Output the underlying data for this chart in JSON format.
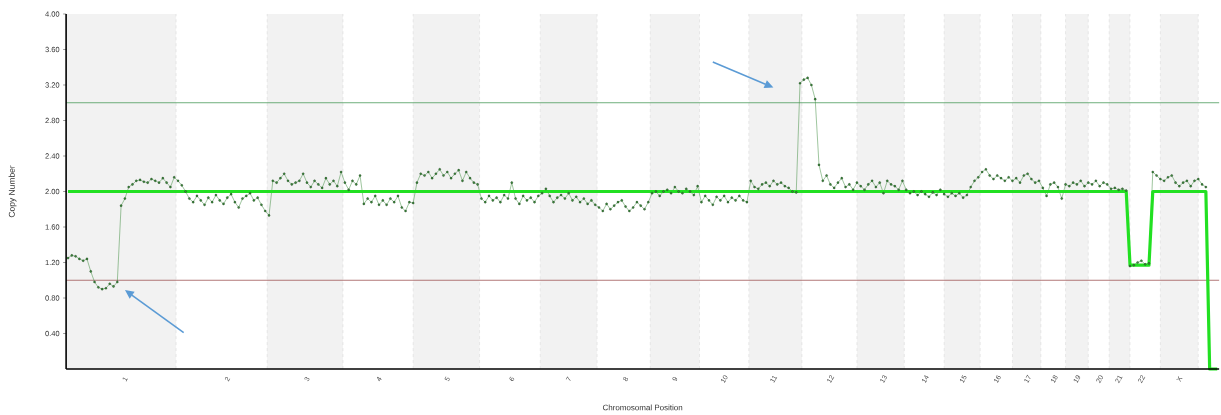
{
  "chart_data": {
    "type": "line",
    "xlabel": "Chromosomal Position",
    "ylabel": "Copy Number",
    "categories": [
      null,
      null,
      null,
      null,
      null,
      null,
      null,
      null,
      null,
      null,
      null,
      null,
      null,
      null,
      null,
      "1",
      null,
      null,
      null,
      null,
      null,
      null,
      null,
      null,
      null,
      null,
      null,
      null,
      null,
      null,
      null,
      null,
      null,
      null,
      null,
      null,
      null,
      null,
      null,
      null,
      null,
      null,
      "2",
      null,
      null,
      null,
      null,
      null,
      null,
      null,
      null,
      null,
      null,
      null,
      null,
      null,
      null,
      null,
      null,
      null,
      null,
      null,
      null,
      "3",
      null,
      null,
      null,
      null,
      null,
      null,
      null,
      null,
      null,
      null,
      null,
      null,
      null,
      null,
      null,
      null,
      null,
      null,
      "4",
      null,
      null,
      null,
      null,
      null,
      null,
      null,
      null,
      null,
      null,
      null,
      null,
      null,
      null,
      null,
      null,
      null,
      "5",
      null,
      null,
      null,
      null,
      null,
      null,
      null,
      null,
      null,
      null,
      null,
      null,
      null,
      null,
      null,
      null,
      "6",
      null,
      null,
      null,
      null,
      null,
      null,
      null,
      null,
      null,
      null,
      null,
      null,
      null,
      null,
      "7",
      null,
      null,
      null,
      null,
      null,
      null,
      null,
      null,
      null,
      null,
      null,
      null,
      null,
      null,
      "8",
      null,
      null,
      null,
      null,
      null,
      null,
      null,
      null,
      null,
      null,
      null,
      null,
      "9",
      null,
      null,
      null,
      null,
      null,
      null,
      null,
      null,
      null,
      null,
      null,
      null,
      "10",
      null,
      null,
      null,
      null,
      null,
      null,
      null,
      null,
      null,
      null,
      null,
      null,
      "11",
      null,
      null,
      null,
      null,
      null,
      null,
      null,
      null,
      null,
      null,
      null,
      null,
      null,
      null,
      "12",
      null,
      null,
      null,
      null,
      null,
      null,
      null,
      null,
      null,
      null,
      null,
      null,
      null,
      "13",
      null,
      null,
      null,
      null,
      null,
      null,
      null,
      null,
      null,
      null,
      "14",
      null,
      null,
      null,
      null,
      null,
      null,
      null,
      null,
      null,
      "15",
      null,
      null,
      null,
      null,
      null,
      null,
      null,
      null,
      "16",
      null,
      null,
      null,
      null,
      null,
      null,
      null,
      "17",
      null,
      null,
      null,
      null,
      null,
      null,
      "18",
      null,
      null,
      null,
      null,
      null,
      "19",
      null,
      null,
      null,
      null,
      null,
      "20",
      null,
      null,
      null,
      null,
      "21",
      null,
      null,
      null,
      null,
      null,
      "22",
      null,
      null,
      null,
      null,
      null,
      null,
      null,
      null,
      null,
      "X",
      null,
      null,
      null,
      null,
      null,
      null,
      null,
      null,
      null,
      null
    ],
    "ylim": [
      0,
      4
    ],
    "yticks": [
      {
        "value": 0.4,
        "label": "0.40"
      },
      {
        "value": 0.8,
        "label": "0.80"
      },
      {
        "value": 1.2,
        "label": "1.20"
      },
      {
        "value": 1.6,
        "label": "1.60"
      },
      {
        "value": 2.0,
        "label": "2.00"
      },
      {
        "value": 2.4,
        "label": "2.40"
      },
      {
        "value": 2.8,
        "label": "2.80"
      },
      {
        "value": 3.2,
        "label": "3.20"
      },
      {
        "value": 3.6,
        "label": "3.60"
      },
      {
        "value": 4.0,
        "label": "4.00"
      }
    ],
    "ref_lines": [
      {
        "axis": "y",
        "value": 3,
        "color": "#4a9a5a"
      },
      {
        "axis": "y",
        "value": 1,
        "color": "#a05555"
      }
    ],
    "series": [
      {
        "color": "#3c8c3c",
        "marker": "circle",
        "values": [
          1.25,
          1.28,
          1.27,
          1.24,
          1.22,
          1.24,
          1.1,
          0.98,
          0.92,
          0.9,
          0.91,
          0.96,
          0.93,
          0.98,
          1.84,
          1.92,
          2.05,
          2.08,
          2.12,
          2.13,
          2.11,
          2.1,
          2.14,
          2.12,
          2.1,
          2.15,
          2.1,
          2.05,
          2.16,
          2.12,
          2.07,
          2.0,
          1.92,
          1.88,
          1.95,
          1.9,
          1.85,
          1.93,
          1.88,
          1.96,
          1.9,
          1.86,
          1.93,
          1.97,
          1.88,
          1.82,
          1.92,
          1.95,
          1.98,
          1.9,
          1.93,
          1.85,
          1.78,
          1.73,
          2.12,
          2.1,
          2.15,
          2.2,
          2.12,
          2.08,
          2.1,
          2.12,
          2.2,
          2.1,
          2.05,
          2.12,
          2.08,
          2.04,
          2.15,
          2.08,
          2.12,
          2.06,
          2.22,
          2.1,
          2.02,
          2.12,
          2.08,
          2.18,
          1.86,
          1.92,
          1.88,
          1.95,
          1.85,
          1.9,
          1.85,
          1.92,
          1.88,
          1.95,
          1.82,
          1.78,
          1.88,
          1.87,
          2.1,
          2.2,
          2.18,
          2.22,
          2.15,
          2.2,
          2.25,
          2.18,
          2.22,
          2.15,
          2.2,
          2.24,
          2.12,
          2.22,
          2.15,
          2.1,
          2.08,
          1.92,
          1.88,
          1.95,
          1.9,
          1.93,
          1.88,
          1.96,
          1.92,
          2.1,
          1.92,
          1.86,
          1.95,
          1.9,
          1.93,
          1.88,
          1.95,
          1.98,
          2.03,
          1.95,
          1.88,
          1.93,
          1.96,
          1.92,
          1.98,
          1.9,
          1.94,
          1.88,
          1.92,
          1.86,
          1.9,
          1.85,
          1.82,
          1.78,
          1.86,
          1.8,
          1.84,
          1.88,
          1.9,
          1.83,
          1.78,
          1.82,
          1.88,
          1.84,
          1.8,
          1.88,
          1.98,
          2.0,
          1.95,
          2.0,
          2.02,
          1.98,
          2.05,
          2.0,
          1.98,
          2.03,
          2.0,
          1.96,
          2.06,
          1.88,
          1.95,
          1.9,
          1.85,
          1.94,
          1.9,
          1.95,
          1.88,
          1.93,
          1.9,
          1.95,
          1.9,
          1.88,
          2.12,
          2.05,
          2.03,
          2.08,
          2.1,
          2.06,
          2.12,
          2.08,
          2.1,
          2.06,
          2.04,
          2.0,
          1.99,
          3.22,
          3.26,
          3.28,
          3.2,
          3.04,
          2.3,
          2.12,
          2.18,
          2.08,
          2.04,
          2.1,
          2.15,
          2.05,
          2.08,
          2.02,
          2.1,
          2.06,
          2.02,
          2.08,
          2.12,
          2.05,
          2.1,
          1.98,
          2.12,
          2.08,
          2.06,
          2.02,
          2.12,
          2.02,
          1.98,
          2.0,
          1.96,
          2.0,
          1.97,
          1.94,
          1.99,
          1.96,
          2.02,
          1.97,
          1.94,
          1.98,
          1.95,
          1.98,
          1.93,
          1.96,
          2.05,
          2.12,
          2.16,
          2.22,
          2.25,
          2.18,
          2.14,
          2.18,
          2.15,
          2.12,
          2.16,
          2.12,
          2.15,
          2.1,
          2.18,
          2.2,
          2.14,
          2.1,
          2.12,
          2.04,
          1.95,
          2.08,
          2.1,
          2.05,
          1.92,
          2.08,
          2.06,
          2.1,
          2.08,
          2.12,
          2.06,
          2.1,
          2.08,
          2.12,
          2.06,
          2.1,
          2.08,
          2.03,
          2.04,
          2.02,
          2.03,
          2.01,
          1.16,
          1.17,
          1.2,
          1.22,
          1.18,
          1.19,
          2.22,
          2.18,
          2.14,
          2.12,
          2.16,
          2.18,
          2.1,
          2.06,
          2.1,
          2.12,
          2.06,
          2.12,
          2.14,
          2.08,
          2.05,
          null,
          null,
          null
        ]
      },
      {
        "color": "#22e022",
        "marker": "none",
        "values": [
          2,
          2,
          2,
          2,
          2,
          2,
          2,
          2,
          2,
          2,
          2,
          2,
          2,
          2,
          2,
          2,
          2,
          2,
          2,
          2,
          2,
          2,
          2,
          2,
          2,
          2,
          2,
          2,
          2,
          2,
          2,
          2,
          2,
          2,
          2,
          2,
          2,
          2,
          2,
          2,
          2,
          2,
          2,
          2,
          2,
          2,
          2,
          2,
          2,
          2,
          2,
          2,
          2,
          2,
          2,
          2,
          2,
          2,
          2,
          2,
          2,
          2,
          2,
          2,
          2,
          2,
          2,
          2,
          2,
          2,
          2,
          2,
          2,
          2,
          2,
          2,
          2,
          2,
          2,
          2,
          2,
          2,
          2,
          2,
          2,
          2,
          2,
          2,
          2,
          2,
          2,
          2,
          2,
          2,
          2,
          2,
          2,
          2,
          2,
          2,
          2,
          2,
          2,
          2,
          2,
          2,
          2,
          2,
          2,
          2,
          2,
          2,
          2,
          2,
          2,
          2,
          2,
          2,
          2,
          2,
          2,
          2,
          2,
          2,
          2,
          2,
          2,
          2,
          2,
          2,
          2,
          2,
          2,
          2,
          2,
          2,
          2,
          2,
          2,
          2,
          2,
          2,
          2,
          2,
          2,
          2,
          2,
          2,
          2,
          2,
          2,
          2,
          2,
          2,
          2,
          2,
          2,
          2,
          2,
          2,
          2,
          2,
          2,
          2,
          2,
          2,
          2,
          2,
          2,
          2,
          2,
          2,
          2,
          2,
          2,
          2,
          2,
          2,
          2,
          2,
          2,
          2,
          2,
          2,
          2,
          2,
          2,
          2,
          2,
          2,
          2,
          2,
          2,
          2,
          2,
          2,
          2,
          2,
          2,
          2,
          2,
          2,
          2,
          2,
          2,
          2,
          2,
          2,
          2,
          2,
          2,
          2,
          2,
          2,
          2,
          2,
          2,
          2,
          2,
          2,
          2,
          2,
          2,
          2,
          2,
          2,
          2,
          2,
          2,
          2,
          2,
          2,
          2,
          2,
          2,
          2,
          2,
          2,
          2,
          2,
          2,
          2,
          2,
          2,
          2,
          2,
          2,
          2,
          2,
          2,
          2,
          2,
          2,
          2,
          2,
          2,
          2,
          2,
          2,
          2,
          2,
          2,
          2,
          2,
          2,
          2,
          2,
          2,
          2,
          2,
          2,
          2,
          2,
          2,
          2,
          2,
          2,
          2,
          2,
          2,
          1.17,
          1.17,
          1.17,
          1.17,
          1.17,
          1.17,
          2,
          2,
          2,
          2,
          2,
          2,
          2,
          2,
          2,
          2,
          2,
          2,
          2,
          2,
          2,
          0,
          0,
          0
        ]
      }
    ]
  }
}
